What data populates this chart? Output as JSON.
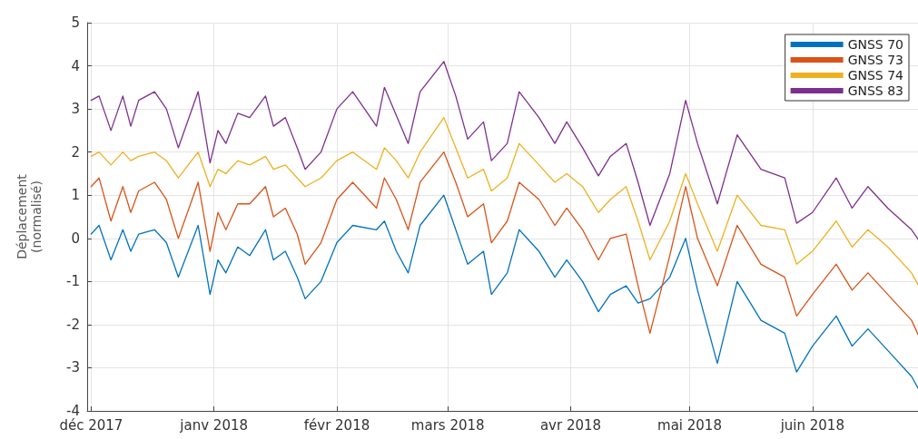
{
  "chart_data": {
    "type": "line",
    "ylabel": "Déplacement\n(normalisé)",
    "x": [
      "2017-12-01",
      "2017-12-03",
      "2017-12-06",
      "2017-12-09",
      "2017-12-11",
      "2017-12-13",
      "2017-12-17",
      "2017-12-20",
      "2017-12-23",
      "2017-12-28",
      "2017-12-31",
      "2018-01-02",
      "2018-01-04",
      "2018-01-07",
      "2018-01-10",
      "2018-01-14",
      "2018-01-16",
      "2018-01-19",
      "2018-01-22",
      "2018-01-24",
      "2018-01-28",
      "2018-02-01",
      "2018-02-05",
      "2018-02-11",
      "2018-02-13",
      "2018-02-16",
      "2018-02-19",
      "2018-02-22",
      "2018-02-28",
      "2018-03-03",
      "2018-03-06",
      "2018-03-10",
      "2018-03-12",
      "2018-03-16",
      "2018-03-19",
      "2018-03-24",
      "2018-03-28",
      "2018-03-31",
      "2018-04-04",
      "2018-04-08",
      "2018-04-11",
      "2018-04-15",
      "2018-04-18",
      "2018-04-21",
      "2018-04-26",
      "2018-04-30",
      "2018-05-03",
      "2018-05-08",
      "2018-05-13",
      "2018-05-19",
      "2018-05-25",
      "2018-05-28",
      "2018-06-01",
      "2018-06-07",
      "2018-06-11",
      "2018-06-15",
      "2018-06-20",
      "2018-06-26",
      "2018-06-29"
    ],
    "series": [
      {
        "name": "GNSS 70",
        "color": "#0072bd",
        "values": [
          0.1,
          0.3,
          -0.5,
          0.2,
          -0.3,
          0.1,
          0.2,
          -0.1,
          -0.9,
          0.3,
          -1.3,
          -0.5,
          -0.8,
          -0.2,
          -0.4,
          0.2,
          -0.5,
          -0.3,
          -0.9,
          -1.4,
          -1.0,
          -0.1,
          0.3,
          0.2,
          0.4,
          -0.3,
          -0.8,
          0.3,
          1.0,
          0.2,
          -0.6,
          -0.3,
          -1.3,
          -0.8,
          0.2,
          -0.3,
          -0.9,
          -0.5,
          -1.0,
          -1.7,
          -1.3,
          -1.1,
          -1.5,
          -1.4,
          -0.9,
          0.0,
          -1.2,
          -2.9,
          -1.0,
          -1.9,
          -2.2,
          -3.1,
          -2.5,
          -1.8,
          -2.5,
          -2.1,
          -2.6,
          -3.2,
          -3.7
        ]
      },
      {
        "name": "GNSS 73",
        "color": "#d95319",
        "values": [
          1.2,
          1.4,
          0.4,
          1.2,
          0.6,
          1.1,
          1.3,
          0.9,
          0.0,
          1.3,
          -0.3,
          0.6,
          0.2,
          0.8,
          0.8,
          1.2,
          0.5,
          0.7,
          0.1,
          -0.6,
          -0.1,
          0.9,
          1.3,
          0.7,
          1.4,
          0.9,
          0.2,
          1.3,
          2.0,
          1.3,
          0.5,
          0.8,
          -0.1,
          0.4,
          1.3,
          0.9,
          0.3,
          0.7,
          0.2,
          -0.5,
          0.0,
          0.1,
          -1.1,
          -2.2,
          -0.4,
          1.2,
          0.0,
          -1.1,
          0.3,
          -0.6,
          -0.9,
          -1.8,
          -1.3,
          -0.6,
          -1.2,
          -0.8,
          -1.3,
          -1.9,
          -2.5
        ]
      },
      {
        "name": "GNSS 74",
        "color": "#edb120",
        "values": [
          1.9,
          2.0,
          1.7,
          2.0,
          1.8,
          1.9,
          2.0,
          1.8,
          1.4,
          2.0,
          1.2,
          1.6,
          1.5,
          1.8,
          1.7,
          1.9,
          1.6,
          1.7,
          1.4,
          1.2,
          1.4,
          1.8,
          2.0,
          1.6,
          2.1,
          1.8,
          1.4,
          2.0,
          2.8,
          2.1,
          1.4,
          1.6,
          1.1,
          1.4,
          2.2,
          1.7,
          1.3,
          1.5,
          1.2,
          0.6,
          0.9,
          1.2,
          0.4,
          -0.5,
          0.4,
          1.5,
          0.8,
          -0.3,
          1.0,
          0.3,
          0.2,
          -0.6,
          -0.3,
          0.4,
          -0.2,
          0.2,
          -0.2,
          -0.8,
          -1.3
        ]
      },
      {
        "name": "GNSS 83",
        "color": "#7e2f8e",
        "values": [
          3.2,
          3.3,
          2.5,
          3.3,
          2.6,
          3.2,
          3.4,
          3.0,
          2.1,
          3.4,
          1.75,
          2.5,
          2.2,
          2.9,
          2.8,
          3.3,
          2.6,
          2.8,
          2.1,
          1.6,
          2.0,
          3.0,
          3.4,
          2.6,
          3.5,
          2.85,
          2.2,
          3.4,
          4.1,
          3.3,
          2.3,
          2.7,
          1.8,
          2.2,
          3.4,
          2.8,
          2.2,
          2.7,
          2.1,
          1.45,
          1.9,
          2.2,
          1.3,
          0.3,
          1.5,
          3.2,
          2.2,
          0.8,
          2.4,
          1.6,
          1.4,
          0.35,
          0.6,
          1.4,
          0.7,
          1.2,
          0.7,
          0.2,
          -0.2
        ]
      }
    ],
    "xlim": [
      "2017-11-30",
      "2018-06-29"
    ],
    "xticks": [
      {
        "value": "2017-12-01",
        "label": "déc 2017"
      },
      {
        "value": "2018-01-01",
        "label": "janv 2018"
      },
      {
        "value": "2018-02-01",
        "label": "févr 2018"
      },
      {
        "value": "2018-03-01",
        "label": "mars 2018"
      },
      {
        "value": "2018-04-01",
        "label": "avr 2018"
      },
      {
        "value": "2018-05-01",
        "label": "mai 2018"
      },
      {
        "value": "2018-06-01",
        "label": "juin 2018"
      }
    ],
    "ylim": [
      -4,
      5
    ],
    "yticks": [
      -4,
      -3,
      -2,
      -1,
      0,
      1,
      2,
      3,
      4,
      5
    ],
    "grid": true,
    "legend": "top right",
    "marker": "none",
    "line_style": "solid"
  }
}
